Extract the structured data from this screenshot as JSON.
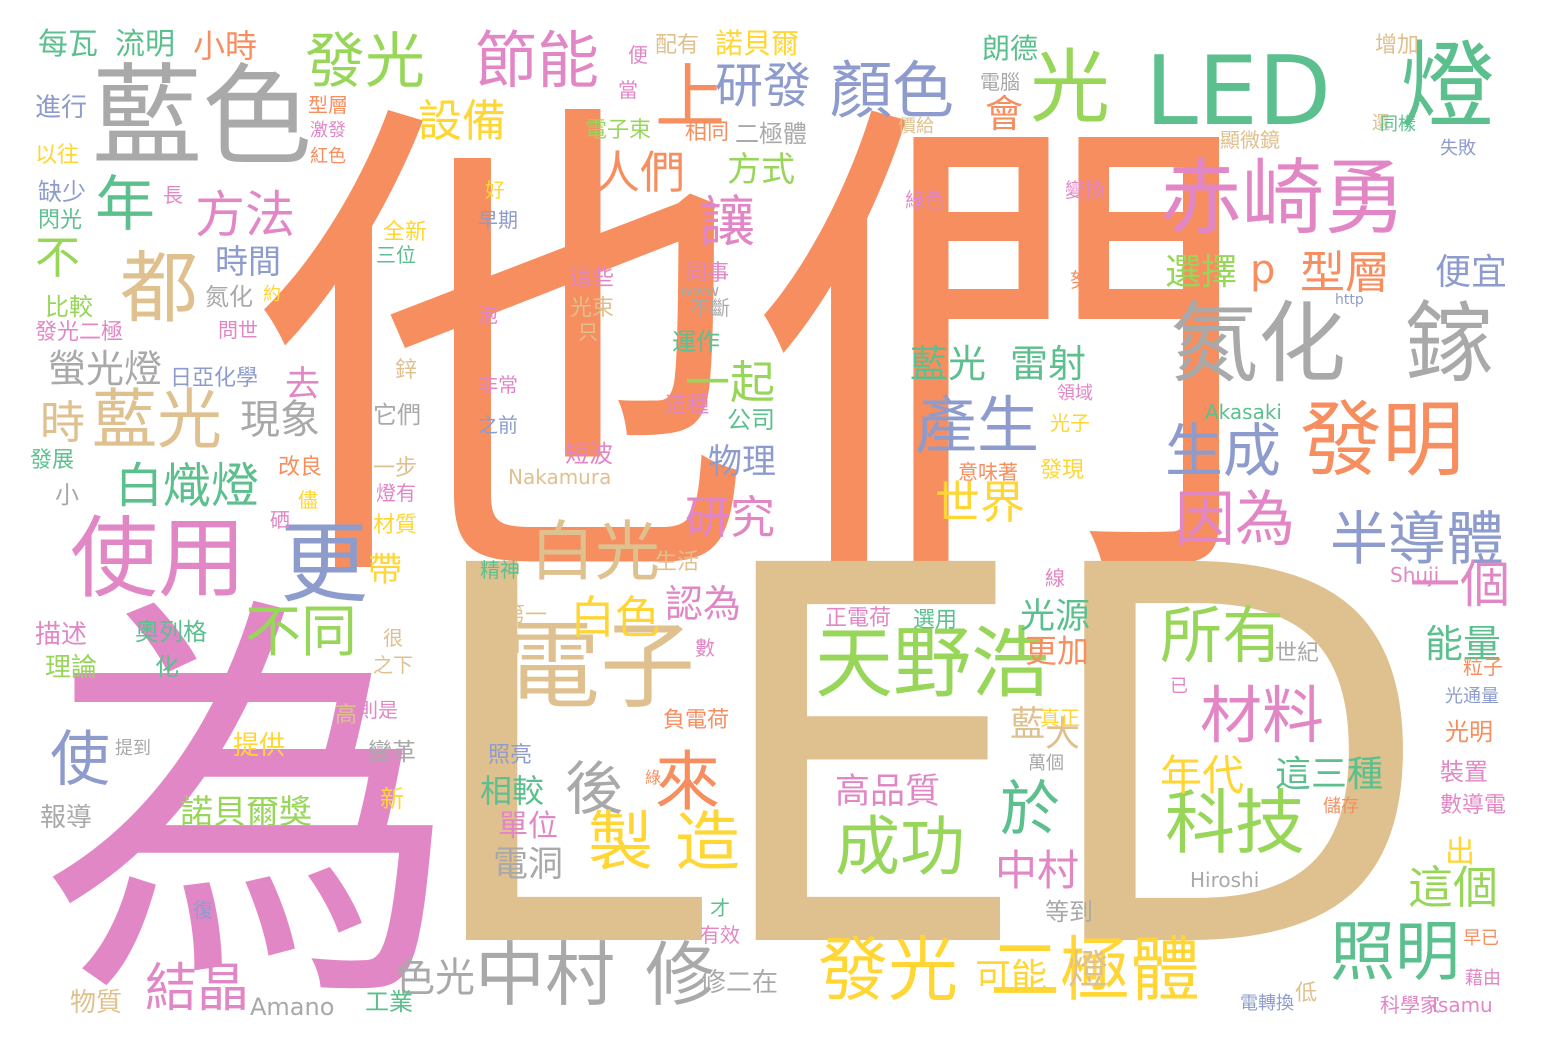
{
  "palette": {
    "orange": "#f78e5f",
    "tan": "#dfc08f",
    "pink": "#e287c6",
    "green": "#98d65a",
    "teal": "#5cbf8e",
    "blue": "#8d9ccc",
    "gray": "#a9a9a9",
    "yellow": "#ffd633"
  },
  "words": [
    {
      "text": "他們",
      "color": "orange"
    },
    {
      "text": "LED",
      "color": "tan"
    },
    {
      "text": "為",
      "color": "pink"
    },
    {
      "text": "藍色",
      "color": "gray"
    },
    {
      "text": "LED",
      "color": "teal"
    },
    {
      "text": "燈",
      "color": "teal"
    },
    {
      "text": "光",
      "color": "green"
    },
    {
      "text": "赤崎勇",
      "color": "pink"
    },
    {
      "text": "氮化",
      "color": "gray"
    },
    {
      "text": "鎵",
      "color": "gray"
    },
    {
      "text": "發明",
      "color": "orange"
    },
    {
      "text": "使用",
      "color": "pink"
    },
    {
      "text": "更",
      "color": "blue"
    },
    {
      "text": "電子",
      "color": "tan"
    },
    {
      "text": "天野浩",
      "color": "green"
    },
    {
      "text": "二極體",
      "color": "yellow"
    },
    {
      "text": "發光",
      "color": "yellow"
    },
    {
      "text": "中村",
      "color": "gray"
    },
    {
      "text": "修",
      "color": "gray"
    },
    {
      "text": "發光",
      "color": "green"
    },
    {
      "text": "節能",
      "color": "pink"
    },
    {
      "text": "顏色",
      "color": "blue"
    },
    {
      "text": "上",
      "color": "orange"
    },
    {
      "text": "研發",
      "color": "blue"
    },
    {
      "text": "設備",
      "color": "yellow"
    },
    {
      "text": "年",
      "color": "teal"
    },
    {
      "text": "方法",
      "color": "pink"
    },
    {
      "text": "都",
      "color": "tan"
    },
    {
      "text": "不",
      "color": "green"
    },
    {
      "text": "時",
      "color": "tan"
    },
    {
      "text": "藍光",
      "color": "tan"
    },
    {
      "text": "白熾燈",
      "color": "teal"
    },
    {
      "text": "白光",
      "color": "tan"
    },
    {
      "text": "白色",
      "color": "yellow"
    },
    {
      "text": "不同",
      "color": "green"
    },
    {
      "text": "後",
      "color": "gray"
    },
    {
      "text": "來",
      "color": "orange"
    },
    {
      "text": "製",
      "color": "yellow"
    },
    {
      "text": "造",
      "color": "yellow"
    },
    {
      "text": "產生",
      "color": "blue"
    },
    {
      "text": "生成",
      "color": "blue"
    },
    {
      "text": "因為",
      "color": "pink"
    },
    {
      "text": "半導體",
      "color": "blue"
    },
    {
      "text": "材料",
      "color": "pink"
    },
    {
      "text": "科技",
      "color": "green"
    },
    {
      "text": "所有",
      "color": "green"
    },
    {
      "text": "成功",
      "color": "green"
    },
    {
      "text": "於",
      "color": "teal"
    },
    {
      "text": "照明",
      "color": "teal"
    },
    {
      "text": "一個",
      "color": "pink"
    },
    {
      "text": "這個",
      "color": "green"
    },
    {
      "text": "結晶",
      "color": "pink"
    },
    {
      "text": "使",
      "color": "blue"
    },
    {
      "text": "人們",
      "color": "orange"
    },
    {
      "text": "讓",
      "color": "pink"
    },
    {
      "text": "一起",
      "color": "green"
    },
    {
      "text": "研究",
      "color": "pink"
    },
    {
      "text": "藍光",
      "color": "teal"
    },
    {
      "text": "雷射",
      "color": "teal"
    },
    {
      "text": "世界",
      "color": "yellow"
    },
    {
      "text": "選擇",
      "color": "green"
    },
    {
      "text": "p",
      "color": "orange"
    },
    {
      "text": "型層",
      "color": "orange"
    },
    {
      "text": "便宜",
      "color": "blue"
    },
    {
      "text": "年代",
      "color": "yellow"
    },
    {
      "text": "這三種",
      "color": "teal"
    },
    {
      "text": "中村",
      "color": "pink"
    },
    {
      "text": "光源",
      "color": "teal"
    },
    {
      "text": "更加",
      "color": "orange"
    },
    {
      "text": "藍",
      "color": "tan"
    },
    {
      "text": "大",
      "color": "tan"
    },
    {
      "text": "高品質",
      "color": "pink"
    },
    {
      "text": "能量",
      "color": "teal"
    },
    {
      "text": "色光",
      "color": "gray"
    },
    {
      "text": "可能",
      "color": "yellow"
    },
    {
      "text": "燈",
      "color": "tan"
    },
    {
      "text": "方式",
      "color": "green"
    },
    {
      "text": "物理",
      "color": "blue"
    },
    {
      "text": "現象",
      "color": "gray"
    },
    {
      "text": "螢光燈",
      "color": "gray"
    },
    {
      "text": "時間",
      "color": "blue"
    },
    {
      "text": "去",
      "color": "pink"
    },
    {
      "text": "認為",
      "color": "pink"
    },
    {
      "text": "諾貝爾獎",
      "color": "green"
    },
    {
      "text": "相較",
      "color": "teal"
    },
    {
      "text": "單位",
      "color": "pink"
    },
    {
      "text": "電洞",
      "color": "gray"
    },
    {
      "text": "每瓦",
      "color": "teal"
    },
    {
      "text": "流明",
      "color": "teal"
    },
    {
      "text": "小時",
      "color": "orange"
    },
    {
      "text": "配有",
      "color": "tan"
    },
    {
      "text": "諾貝爾",
      "color": "yellow"
    },
    {
      "text": "朗德",
      "color": "teal"
    },
    {
      "text": "增加",
      "color": "tan"
    },
    {
      "text": "進行",
      "color": "blue"
    },
    {
      "text": "以往",
      "color": "yellow"
    },
    {
      "text": "缺少",
      "color": "blue"
    },
    {
      "text": "閃光",
      "color": "teal"
    },
    {
      "text": "比較",
      "color": "green"
    },
    {
      "text": "發光二極",
      "color": "pink"
    },
    {
      "text": "理論",
      "color": "green"
    },
    {
      "text": "描述",
      "color": "pink"
    },
    {
      "text": "報導",
      "color": "gray"
    },
    {
      "text": "物質",
      "color": "tan"
    },
    {
      "text": "工業",
      "color": "teal"
    },
    {
      "text": "Amano",
      "color": "gray"
    },
    {
      "text": "修二在",
      "color": "gray"
    },
    {
      "text": "奧列格",
      "color": "teal"
    },
    {
      "text": "化",
      "color": "teal"
    },
    {
      "text": "提供",
      "color": "yellow"
    },
    {
      "text": "變革",
      "color": "gray"
    },
    {
      "text": "新",
      "color": "yellow"
    },
    {
      "text": "則是",
      "color": "pink"
    },
    {
      "text": "高",
      "color": "tan"
    },
    {
      "text": "很",
      "color": "tan"
    },
    {
      "text": "之下",
      "color": "tan"
    },
    {
      "text": "帶",
      "color": "yellow"
    },
    {
      "text": "生活",
      "color": "tan"
    },
    {
      "text": "精神",
      "color": "teal"
    },
    {
      "text": "第一",
      "color": "tan"
    },
    {
      "text": "正電荷",
      "color": "pink"
    },
    {
      "text": "選用",
      "color": "teal"
    },
    {
      "text": "負電荷",
      "color": "orange"
    },
    {
      "text": "照亮",
      "color": "blue"
    },
    {
      "text": "數",
      "color": "pink"
    },
    {
      "text": "短波",
      "color": "pink"
    },
    {
      "text": "Nakamura",
      "color": "tan"
    },
    {
      "text": "公司",
      "color": "teal"
    },
    {
      "text": "這種",
      "color": "pink"
    },
    {
      "text": "運作",
      "color": "teal"
    },
    {
      "text": "光束",
      "color": "tan"
    },
    {
      "text": "同事",
      "color": "pink"
    },
    {
      "text": "不斷",
      "color": "gray"
    },
    {
      "text": "改良",
      "color": "orange"
    },
    {
      "text": "發展",
      "color": "teal"
    },
    {
      "text": "小",
      "color": "gray"
    },
    {
      "text": "硒",
      "color": "pink"
    },
    {
      "text": "材質",
      "color": "yellow"
    },
    {
      "text": "一步",
      "color": "tan"
    },
    {
      "text": "燈有",
      "color": "pink"
    },
    {
      "text": "它們",
      "color": "gray"
    },
    {
      "text": "鋅",
      "color": "tan"
    },
    {
      "text": "非常",
      "color": "pink"
    },
    {
      "text": "之前",
      "color": "blue"
    },
    {
      "text": "日亞化學",
      "color": "blue"
    },
    {
      "text": "氮化",
      "color": "gray"
    },
    {
      "text": "問世",
      "color": "pink"
    },
    {
      "text": "紅色",
      "color": "orange"
    },
    {
      "text": "全新",
      "color": "yellow"
    },
    {
      "text": "三位",
      "color": "teal"
    },
    {
      "text": "好",
      "color": "yellow"
    },
    {
      "text": "早期",
      "color": "blue"
    },
    {
      "text": "這些",
      "color": "pink"
    },
    {
      "text": "泡",
      "color": "pink"
    },
    {
      "text": "只",
      "color": "tan"
    },
    {
      "text": "電子束",
      "color": "green"
    },
    {
      "text": "相同",
      "color": "orange"
    },
    {
      "text": "二極體",
      "color": "gray"
    },
    {
      "text": "型層",
      "color": "orange"
    },
    {
      "text": "激發",
      "color": "pink"
    },
    {
      "text": "會",
      "color": "orange"
    },
    {
      "text": "電腦",
      "color": "gray"
    },
    {
      "text": "還",
      "color": "tan"
    },
    {
      "text": "同樣",
      "color": "teal"
    },
    {
      "text": "失敗",
      "color": "blue"
    },
    {
      "text": "顯微鏡",
      "color": "tan"
    },
    {
      "text": "綠色",
      "color": "pink"
    },
    {
      "text": "變換",
      "color": "pink"
    },
    {
      "text": "努力",
      "color": "orange"
    },
    {
      "text": "Akasaki",
      "color": "teal"
    },
    {
      "text": "光子",
      "color": "yellow"
    },
    {
      "text": "領域",
      "color": "pink"
    },
    {
      "text": "意味著",
      "color": "orange"
    },
    {
      "text": "發現",
      "color": "yellow"
    },
    {
      "text": "Shuji",
      "color": "pink"
    },
    {
      "text": "世紀",
      "color": "gray"
    },
    {
      "text": "粒子",
      "color": "orange"
    },
    {
      "text": "光通量",
      "color": "blue"
    },
    {
      "text": "光明",
      "color": "orange"
    },
    {
      "text": "裝置",
      "color": "pink"
    },
    {
      "text": "數導電",
      "color": "pink"
    },
    {
      "text": "出",
      "color": "yellow"
    },
    {
      "text": "Hiroshi",
      "color": "gray"
    },
    {
      "text": "等到",
      "color": "gray"
    },
    {
      "text": "才",
      "color": "teal"
    },
    {
      "text": "有效",
      "color": "pink"
    },
    {
      "text": "早已",
      "color": "orange"
    },
    {
      "text": "藉由",
      "color": "pink"
    },
    {
      "text": "科學家",
      "color": "pink"
    },
    {
      "text": "Isamu",
      "color": "pink"
    },
    {
      "text": "低",
      "color": "tan"
    },
    {
      "text": "電轉換",
      "color": "blue"
    },
    {
      "text": "已",
      "color": "pink"
    },
    {
      "text": "真正",
      "color": "yellow"
    },
    {
      "text": "萬個",
      "color": "gray"
    },
    {
      "text": "儲存",
      "color": "orange"
    },
    {
      "text": "線",
      "color": "pink"
    },
    {
      "text": "復",
      "color": "blue"
    },
    {
      "text": "綠",
      "color": "orange"
    },
    {
      "text": "提到",
      "color": "gray"
    },
    {
      "text": "約",
      "color": "yellow"
    },
    {
      "text": "www",
      "color": "gray"
    },
    {
      "text": "http",
      "color": "blue"
    },
    {
      "text": "價給",
      "color": "tan"
    },
    {
      "text": "便",
      "color": "pink"
    },
    {
      "text": "當",
      "color": "pink"
    },
    {
      "text": "長",
      "color": "pink"
    },
    {
      "text": "儘",
      "color": "yellow"
    }
  ]
}
